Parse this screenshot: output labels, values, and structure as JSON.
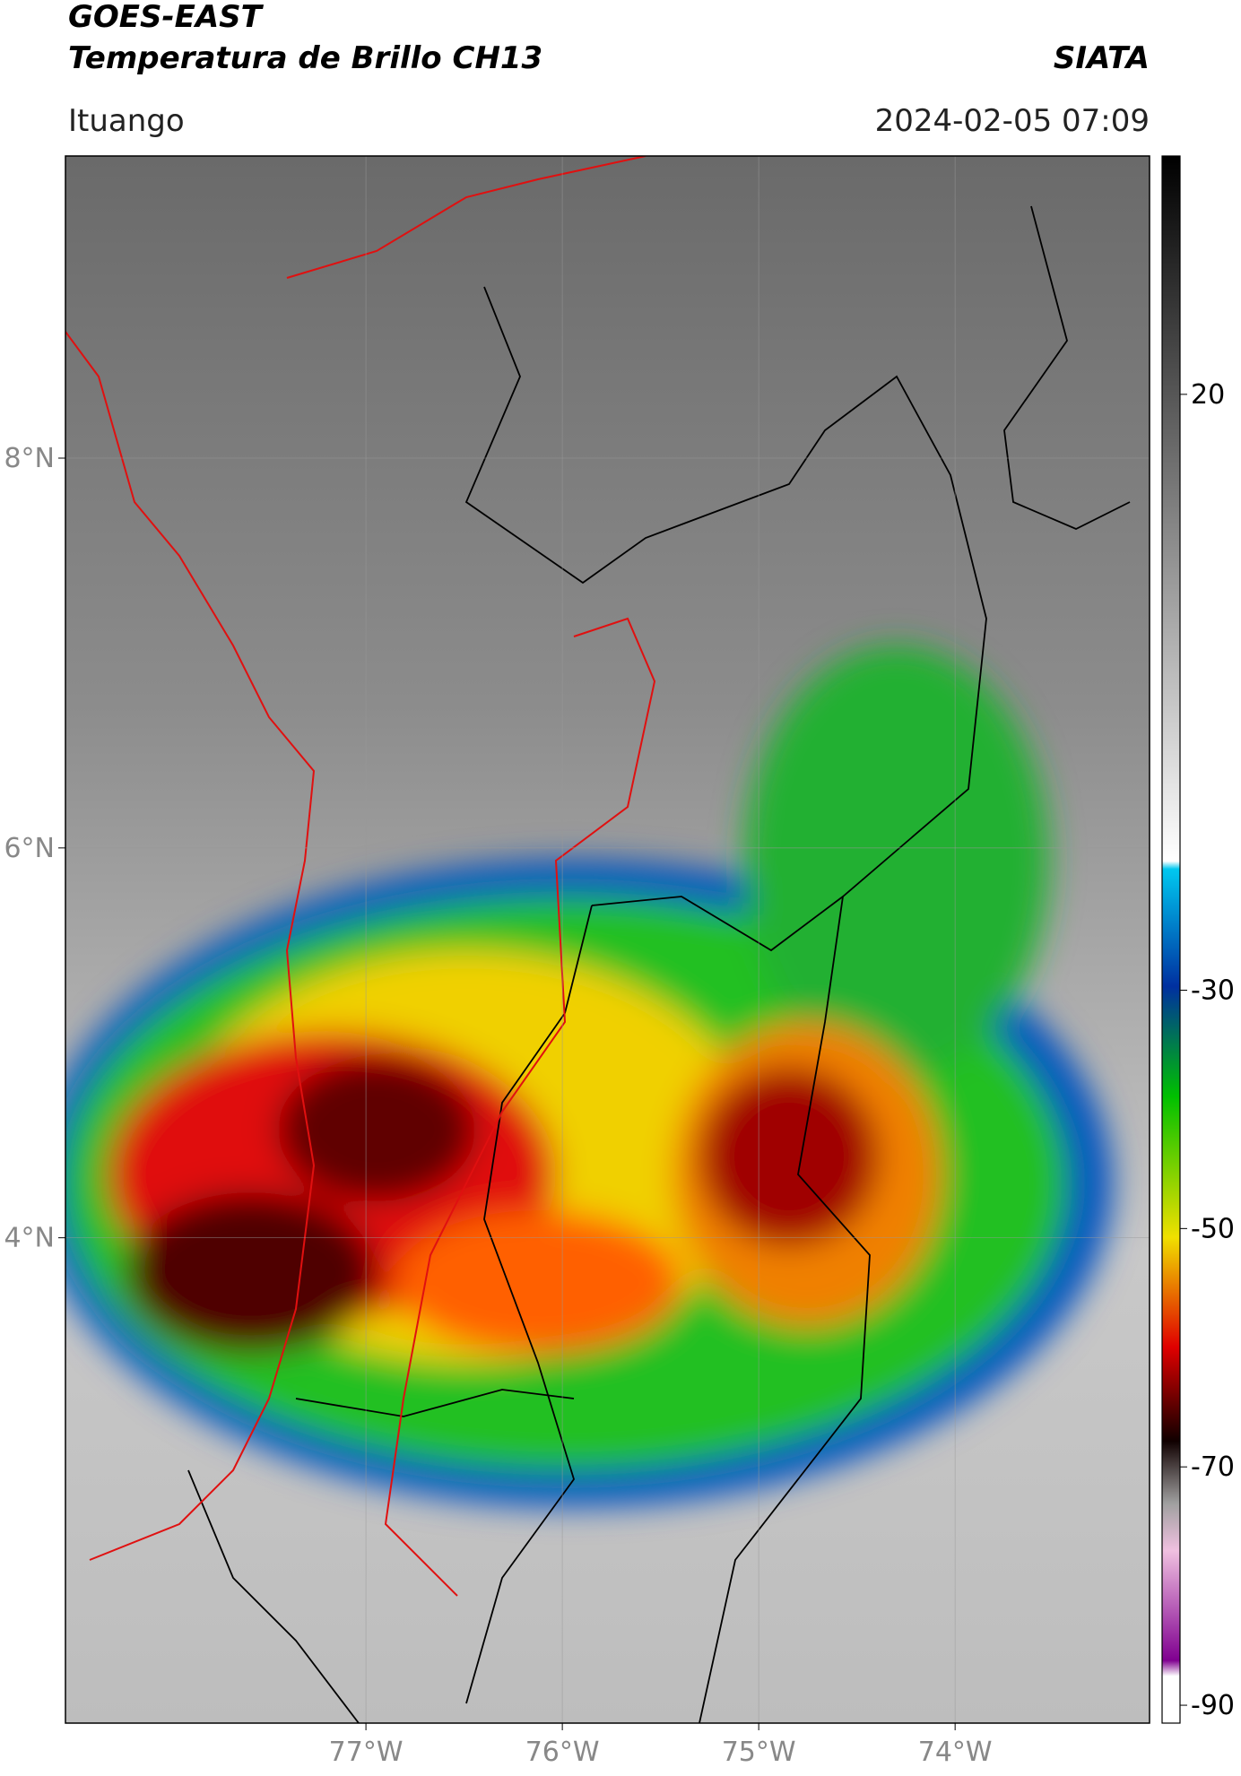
{
  "header": {
    "title": "GOES-EAST",
    "subtitle": "Temperatura de Brillo CH13",
    "source": "SIATA",
    "region": "Ituango",
    "datetime": "2024-02-05 07:09"
  },
  "map": {
    "xlim": [
      -78.53,
      -73.01
    ],
    "ylim": [
      1.51,
      9.55
    ],
    "xticks": [
      {
        "value": -77,
        "label": "77°W"
      },
      {
        "value": -76,
        "label": "76°W"
      },
      {
        "value": -75,
        "label": "75°W"
      },
      {
        "value": -74,
        "label": "74°W"
      }
    ],
    "yticks": [
      {
        "value": 8,
        "label": "8°N"
      },
      {
        "value": 6,
        "label": "6°N"
      },
      {
        "value": 4,
        "label": "4°N"
      }
    ],
    "grid": true
  },
  "colorbar": {
    "lim": [
      -91.5,
      40
    ],
    "ticks": [
      20,
      -30,
      -50,
      -70,
      -90
    ]
  }
}
